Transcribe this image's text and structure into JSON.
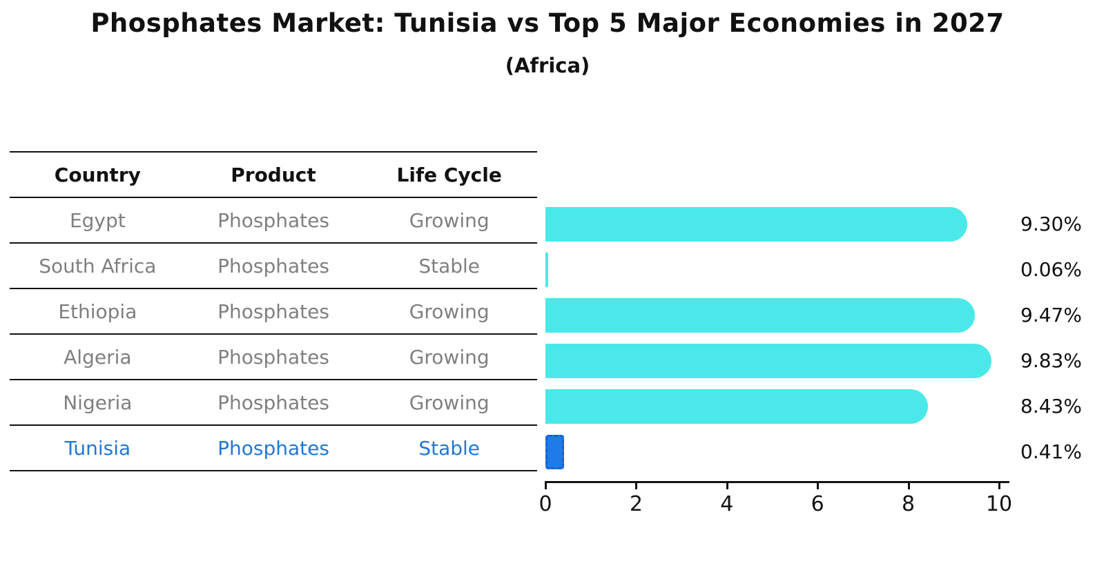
{
  "header": {
    "title": "Phosphates Market: Tunisia vs Top 5 Major Economies in 2027",
    "subtitle": "(Africa)"
  },
  "table": {
    "headers": [
      "Country",
      "Product",
      "Life Cycle"
    ],
    "rows": [
      {
        "country": "Egypt",
        "product": "Phosphates",
        "life_cycle": "Growing",
        "highlight": false
      },
      {
        "country": "South Africa",
        "product": "Phosphates",
        "life_cycle": "Stable",
        "highlight": false
      },
      {
        "country": "Ethiopia",
        "product": "Phosphates",
        "life_cycle": "Growing",
        "highlight": false
      },
      {
        "country": "Algeria",
        "product": "Phosphates",
        "life_cycle": "Growing",
        "highlight": false
      },
      {
        "country": "Nigeria",
        "product": "Phosphates",
        "life_cycle": "Growing",
        "highlight": false
      },
      {
        "country": "Tunisia",
        "product": "Phosphates",
        "life_cycle": "Stable",
        "highlight": true
      }
    ]
  },
  "chart_data": {
    "type": "bar",
    "orientation": "horizontal",
    "title": "Phosphates Market: Tunisia vs Top 5 Major Economies in 2027",
    "subtitle": "(Africa)",
    "categories": [
      "Egypt",
      "South Africa",
      "Ethiopia",
      "Algeria",
      "Nigeria",
      "Tunisia"
    ],
    "values": [
      9.3,
      0.06,
      9.47,
      9.83,
      8.43,
      0.41
    ],
    "value_labels": [
      "9.30%",
      "0.06%",
      "9.47%",
      "9.83%",
      "8.43%",
      "0.41%"
    ],
    "highlight_index": 5,
    "xlim": [
      0,
      10.3
    ],
    "x_ticks": [
      0,
      2,
      4,
      6,
      8,
      10
    ],
    "grid": false,
    "legend": false,
    "bar_color": "#4ae8e8",
    "highlight_bar_color": "#1e7be8",
    "highlight_text_color": "#2277d4",
    "table_text_color": "#7f7f7f",
    "axis_color": "#111111"
  }
}
